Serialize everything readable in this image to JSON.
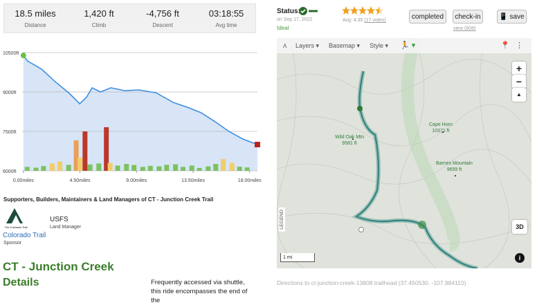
{
  "stats": [
    {
      "value": "18.5 miles",
      "label": "Distance"
    },
    {
      "value": "1,420 ft",
      "label": "Climb"
    },
    {
      "value": "-4,756 ft",
      "label": "Descent"
    },
    {
      "value": "03:18:55",
      "label": "Avg time"
    }
  ],
  "elevation_profile": {
    "type": "line",
    "x": [
      0,
      0.33,
      1.44,
      2.54,
      3.65,
      4.48,
      5.03,
      5.47,
      6.13,
      6.96,
      8.07,
      9.17,
      10.55,
      11.93,
      13.04,
      14.14,
      15.25,
      16.35,
      17.46,
      18.62
    ],
    "values": [
      10390,
      10180,
      9870,
      9390,
      8950,
      8550,
      8810,
      9160,
      9000,
      9160,
      9050,
      9080,
      8970,
      8600,
      8420,
      8210,
      7870,
      7500,
      7210,
      7000
    ],
    "color": "#3d8fe0",
    "fill": "#d7e5f6",
    "xlim": [
      -0.1,
      18.62
    ],
    "ylim": [
      6000,
      10500
    ],
    "xticks": [
      {
        "value": 0,
        "label": "0.00miles"
      },
      {
        "value": 4.5,
        "label": "4.50miles"
      },
      {
        "value": 9,
        "label": "9.00miles"
      },
      {
        "value": 13.5,
        "label": "13.50miles"
      },
      {
        "value": 18,
        "label": "18.00miles"
      }
    ],
    "yticks": [
      {
        "value": 10500,
        "label": "10500ft"
      },
      {
        "value": 9000,
        "label": "9000ft"
      },
      {
        "value": 7500,
        "label": "7500ft"
      },
      {
        "value": 6000,
        "label": "6000ft"
      }
    ],
    "grid": true,
    "bars": {
      "x": [
        0.3,
        1.0,
        1.6,
        2.3,
        2.9,
        3.6,
        4.2,
        4.5,
        4.9,
        5.3,
        6.0,
        6.6,
        6.9,
        7.5,
        8.2,
        8.8,
        9.5,
        10.1,
        10.8,
        11.4,
        12.1,
        12.7,
        13.4,
        14.0,
        14.7,
        15.3,
        15.9,
        16.6,
        17.2,
        17.8
      ],
      "values": [
        6150,
        6120,
        6180,
        6280,
        6350,
        6230,
        7160,
        6500,
        7500,
        6240,
        6280,
        7660,
        6300,
        6200,
        6260,
        6220,
        6150,
        6190,
        6170,
        6230,
        6250,
        6150,
        6200,
        6110,
        6170,
        6260,
        6450,
        6300,
        6160,
        6130
      ],
      "colors": [
        "#7cc25f",
        "#7cc25f",
        "#7cc25f",
        "#f2cd6b",
        "#f2cd6b",
        "#7cc25f",
        "#e8a05a",
        "#f2cd6b",
        "#b8392b",
        "#7cc25f",
        "#7cc25f",
        "#b8392b",
        "#f2cd6b",
        "#7cc25f",
        "#7cc25f",
        "#7cc25f",
        "#7cc25f",
        "#7cc25f",
        "#7cc25f",
        "#7cc25f",
        "#7cc25f",
        "#7cc25f",
        "#7cc25f",
        "#7cc25f",
        "#7cc25f",
        "#7cc25f",
        "#f2cd6b",
        "#f2cd6b",
        "#7cc25f",
        "#7cc25f"
      ]
    }
  },
  "supporters": {
    "title": "Supporters, Builders, Maintainers & Land Managers of CT - Junction Creek Trail",
    "items": [
      {
        "logo_text": "The Colorado Trail",
        "name": "Colorado Trail",
        "role": "Sponsor"
      },
      {
        "name": "USFS",
        "role": "Land Manager"
      }
    ]
  },
  "trail": {
    "title": "CT - Junction Creek",
    "details_heading": "Details",
    "description": "Frequently accessed via shuttle, this ride encompasses the end of the"
  },
  "status": {
    "label": "Status:",
    "date": "on Sep 17, 2022",
    "condition": "Ideal"
  },
  "rating": {
    "average": "Avg: 4.35",
    "votes": "(17 votes)"
  },
  "buttons": {
    "completed": "completed",
    "checkin": "check-in",
    "views": "view (608)",
    "save": "save"
  },
  "map": {
    "toolbar": [
      "Layers",
      "Basemap",
      "Style"
    ],
    "labels": [
      {
        "name": "Wild Oak Mtn",
        "elevation": "9581 ft"
      },
      {
        "name": "Cape Horn",
        "elevation": "10371 ft"
      },
      {
        "name": "Barnes Mountain",
        "elevation": "9659 ft"
      }
    ],
    "legend": "LEGEND",
    "scale": "1 mi",
    "three_d": "3D",
    "zoom_in": "+",
    "zoom_out": "−",
    "compass": "▲"
  },
  "directions": "Directions to ct-junction-creek-13808 trailhead (37.450530, -107.984110)"
}
